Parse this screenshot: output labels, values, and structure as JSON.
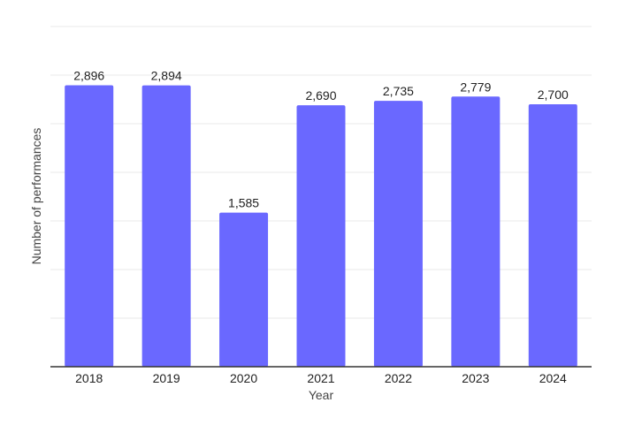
{
  "chart_data": {
    "type": "bar",
    "categories": [
      "2018",
      "2019",
      "2020",
      "2021",
      "2022",
      "2023",
      "2024"
    ],
    "values": [
      2896,
      2894,
      1585,
      2690,
      2735,
      2779,
      2700
    ],
    "value_labels": [
      "2,896",
      "2,894",
      "1,585",
      "2,690",
      "2,735",
      "2,779",
      "2,700"
    ],
    "title": "",
    "xlabel": "Year",
    "ylabel": "Number of performances",
    "ylim": [
      0,
      3500
    ],
    "grid": true,
    "y_tick_labels_shown": false,
    "legend": "none",
    "colors": {
      "bar": "#6a68ff",
      "grid": "#e9e9e9",
      "axis": "#333333"
    }
  }
}
